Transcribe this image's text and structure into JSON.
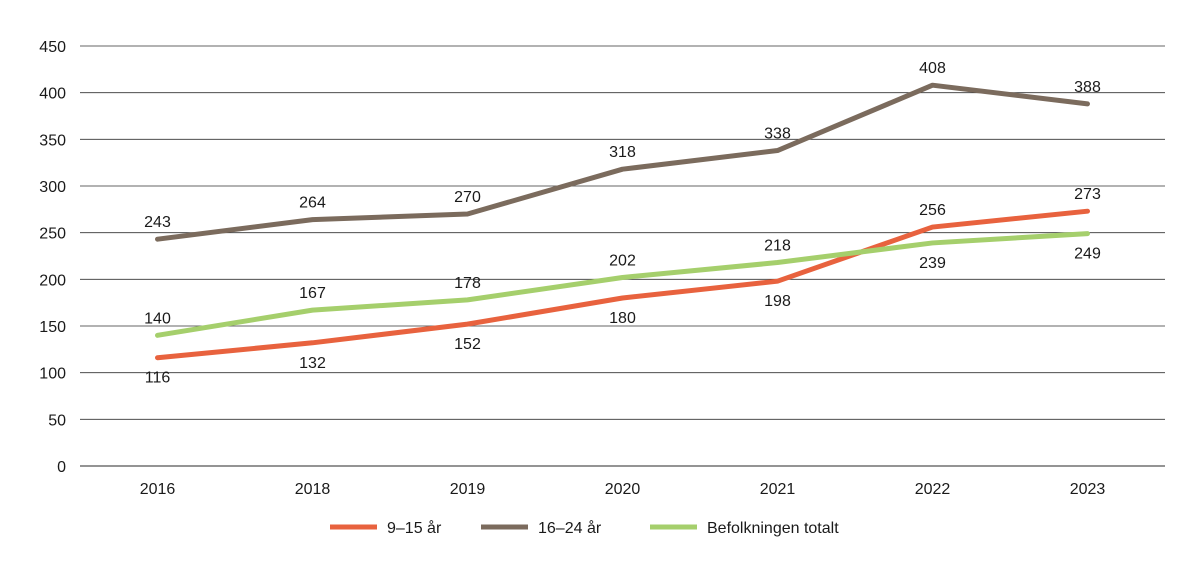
{
  "chart_data": {
    "type": "line",
    "categories": [
      "2016",
      "2018",
      "2019",
      "2020",
      "2021",
      "2022",
      "2023"
    ],
    "series": [
      {
        "name": "9–15 år",
        "color": "#e8623e",
        "values": [
          116,
          132,
          152,
          180,
          198,
          256,
          273
        ]
      },
      {
        "name": "16–24 år",
        "color": "#7b6b5d",
        "values": [
          243,
          264,
          270,
          318,
          338,
          408,
          388
        ]
      },
      {
        "name": "Befolkningen totalt",
        "color": "#a5cf6c",
        "values": [
          140,
          167,
          178,
          202,
          218,
          239,
          249
        ]
      }
    ],
    "yticks": [
      0,
      50,
      100,
      150,
      200,
      250,
      300,
      350,
      400,
      450
    ],
    "ylim": [
      0,
      450
    ],
    "grid": "horizontal",
    "legend": "bottom",
    "title": "",
    "xlabel": "",
    "ylabel": ""
  }
}
